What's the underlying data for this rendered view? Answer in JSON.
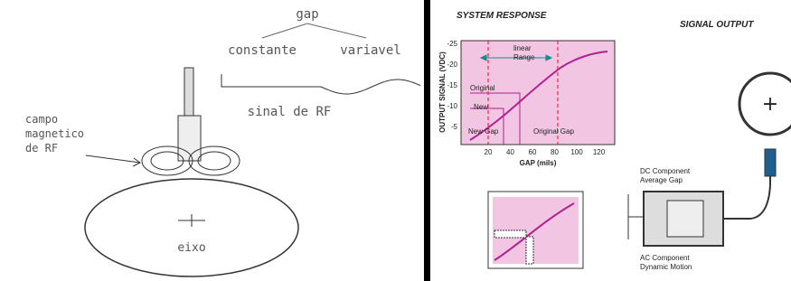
{
  "left": {
    "gap": "gap",
    "constant": "constante",
    "variable": "variavel",
    "signal": "sinal de RF",
    "field": [
      "campo",
      "magnetico",
      "de RF"
    ],
    "axis": "eixo"
  },
  "right": {
    "title": "SYSTEM RESPONSE",
    "output_title": "SIGNAL OUTPUT",
    "chart": {
      "y_label": "OUTPUT SIGNAL (VDC)",
      "x_label": "GAP (mils)",
      "yticks": [
        "-25",
        "-20",
        "-15",
        "-10",
        "-5"
      ],
      "xticks": [
        "20",
        "40",
        "60",
        "80",
        "100",
        "120"
      ],
      "linear_range": [
        "linear",
        "Range"
      ],
      "original": "Original",
      "new": "New",
      "new_gap": "New Gap",
      "original_gap": "Original Gap"
    },
    "dc": [
      "DC Component",
      "Average Gap"
    ],
    "ac": [
      "AC Component",
      "Dynamic Motion"
    ],
    "plus": "+"
  }
}
